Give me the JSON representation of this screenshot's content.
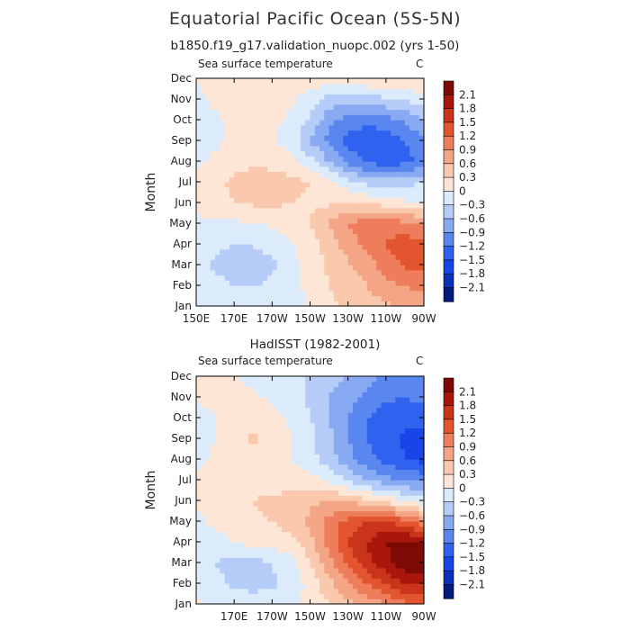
{
  "title": "Equatorial Pacific Ocean (5S-5N)",
  "subtitle": "b1850.f19_g17.validation_nuopc.002 (yrs 1-50)",
  "colors": {
    "levels": [
      -2.1,
      -1.8,
      -1.5,
      -1.2,
      -0.9,
      -0.6,
      -0.3,
      0,
      0.3,
      0.6,
      0.9,
      1.2,
      1.5,
      1.8,
      2.1
    ],
    "bins": [
      "#001b80",
      "#0a2fb8",
      "#1845e8",
      "#2f62ef",
      "#5a86f0",
      "#88aaf3",
      "#b6ccf8",
      "#dcebfb",
      "#fde6d6",
      "#f9c8ad",
      "#f4a586",
      "#ee7d5c",
      "#e2552f",
      "#c9341a",
      "#a9170c",
      "#7e0a05"
    ]
  },
  "chart_data": [
    {
      "type": "heatmap",
      "title": "",
      "left_label": "Sea surface temperature",
      "right_label": "C",
      "ylabel": "Month",
      "xlabel": "",
      "x_tick_labels": [
        "150E",
        "170E",
        "170W",
        "150W",
        "130W",
        "110W",
        "90W"
      ],
      "y_tick_labels": [
        "Jan",
        "Feb",
        "Mar",
        "Apr",
        "May",
        "Jun",
        "Jul",
        "Aug",
        "Sep",
        "Oct",
        "Nov",
        "Dec"
      ],
      "xlim": [
        "150E",
        "90W"
      ],
      "colorbar_labels": [
        "2.1",
        "1.8",
        "1.5",
        "1.2",
        "0.9",
        "0.6",
        "0.3",
        "0",
        "-0.3",
        "-0.6",
        "-0.9",
        "-1.2",
        "-1.5",
        "-1.8",
        "-2.1"
      ],
      "longitudes": [
        "150E",
        "160E",
        "170E",
        "180",
        "170W",
        "160W",
        "150W",
        "140W",
        "130W",
        "120W",
        "110W",
        "100W",
        "90W"
      ],
      "months": [
        "Jan",
        "Feb",
        "Mar",
        "Apr",
        "May",
        "Jun",
        "Jul",
        "Aug",
        "Sep",
        "Oct",
        "Nov",
        "Dec"
      ],
      "values": [
        [
          -0.05,
          -0.1,
          -0.12,
          -0.1,
          -0.06,
          -0.02,
          0.0,
          0.25,
          0.35,
          0.45,
          0.55,
          0.65,
          0.7
        ],
        [
          -0.1,
          -0.22,
          -0.3,
          -0.32,
          -0.25,
          -0.08,
          0.05,
          0.3,
          0.45,
          0.6,
          0.8,
          0.9,
          1.0
        ],
        [
          -0.15,
          -0.35,
          -0.42,
          -0.45,
          -0.35,
          -0.12,
          0.15,
          0.35,
          0.55,
          0.75,
          1.05,
          1.25,
          1.3
        ],
        [
          -0.1,
          -0.25,
          -0.3,
          -0.28,
          -0.2,
          -0.05,
          0.2,
          0.4,
          0.75,
          1.0,
          1.2,
          1.35,
          1.3
        ],
        [
          -0.05,
          -0.05,
          -0.05,
          -0.02,
          0.05,
          0.15,
          0.3,
          0.65,
          0.9,
          1.1,
          1.15,
          1.0,
          0.85
        ],
        [
          0.05,
          0.15,
          0.3,
          0.35,
          0.35,
          0.3,
          0.25,
          0.25,
          0.3,
          0.25,
          0.15,
          0.05,
          0.0
        ],
        [
          0.05,
          0.2,
          0.38,
          0.45,
          0.45,
          0.4,
          0.3,
          0.1,
          -0.2,
          -0.4,
          -0.45,
          -0.4,
          -0.3
        ],
        [
          -0.05,
          0.05,
          0.15,
          0.25,
          0.2,
          0.1,
          -0.2,
          -0.6,
          -1.0,
          -1.25,
          -1.4,
          -1.3,
          -1.1
        ],
        [
          -0.15,
          -0.05,
          0.05,
          0.1,
          0.05,
          -0.15,
          -0.6,
          -1.0,
          -1.3,
          -1.45,
          -1.4,
          -1.2,
          -0.95
        ],
        [
          -0.15,
          -0.05,
          0.05,
          0.1,
          0.05,
          -0.05,
          -0.35,
          -0.8,
          -1.0,
          -1.1,
          -1.0,
          -0.85,
          -0.6
        ],
        [
          -0.05,
          0.05,
          0.15,
          0.2,
          0.15,
          0.05,
          -0.15,
          -0.45,
          -0.5,
          -0.5,
          -0.35,
          -0.25,
          -0.15
        ],
        [
          0.0,
          0.1,
          0.15,
          0.2,
          0.15,
          0.1,
          0.15,
          0.2,
          0.25,
          0.3,
          0.35,
          0.35,
          0.3
        ]
      ]
    },
    {
      "type": "heatmap",
      "title": "HadISST (1982-2001)",
      "left_label": "Sea surface temperature",
      "right_label": "C",
      "ylabel": "Month",
      "xlabel": "",
      "x_tick_labels": [
        "170E",
        "170W",
        "150W",
        "130W",
        "110W",
        "90W"
      ],
      "y_tick_labels": [
        "Jan",
        "Feb",
        "Mar",
        "Apr",
        "May",
        "Jun",
        "Jul",
        "Aug",
        "Sep",
        "Oct",
        "Nov",
        "Dec"
      ],
      "xlim": [
        "150E",
        "90W"
      ],
      "colorbar_labels": [
        "2.1",
        "1.8",
        "1.5",
        "1.2",
        "0.9",
        "0.6",
        "0.3",
        "0",
        "-0.3",
        "-0.6",
        "-0.9",
        "-1.2",
        "-1.5",
        "-1.8",
        "-2.1"
      ],
      "longitudes": [
        "150E",
        "160E",
        "170E",
        "180",
        "170W",
        "160W",
        "150W",
        "140W",
        "130W",
        "120W",
        "110W",
        "100W",
        "90W"
      ],
      "months": [
        "Jan",
        "Feb",
        "Mar",
        "Apr",
        "May",
        "Jun",
        "Jul",
        "Aug",
        "Sep",
        "Oct",
        "Nov",
        "Dec"
      ],
      "values": [
        [
          0.05,
          -0.05,
          -0.15,
          -0.15,
          -0.1,
          -0.05,
          0.1,
          0.3,
          0.5,
          0.7,
          0.9,
          1.1,
          1.2
        ],
        [
          -0.05,
          -0.2,
          -0.35,
          -0.4,
          -0.35,
          -0.2,
          0.1,
          0.5,
          0.9,
          1.2,
          1.5,
          1.8,
          1.9
        ],
        [
          -0.1,
          -0.3,
          -0.4,
          -0.4,
          -0.3,
          -0.1,
          0.3,
          0.8,
          1.3,
          1.7,
          2.0,
          2.3,
          2.4
        ],
        [
          -0.05,
          -0.1,
          0.0,
          0.1,
          0.1,
          0.2,
          0.5,
          1.0,
          1.5,
          1.8,
          2.1,
          2.2,
          2.1
        ],
        [
          -0.05,
          0.05,
          0.15,
          0.25,
          0.3,
          0.45,
          0.65,
          1.0,
          1.3,
          1.5,
          1.5,
          1.3,
          1.0
        ],
        [
          0.05,
          0.1,
          0.2,
          0.3,
          0.35,
          0.4,
          0.55,
          0.6,
          0.55,
          0.4,
          0.2,
          0.0,
          -0.2
        ],
        [
          0.05,
          0.15,
          0.2,
          0.25,
          0.2,
          0.15,
          0.1,
          -0.05,
          -0.35,
          -0.6,
          -0.8,
          -0.9,
          -1.0
        ],
        [
          -0.1,
          0.05,
          0.15,
          0.2,
          0.1,
          0.0,
          -0.2,
          -0.45,
          -0.8,
          -1.1,
          -1.3,
          -1.5,
          -1.6
        ],
        [
          -0.15,
          0.0,
          0.2,
          0.35,
          0.2,
          0.0,
          -0.2,
          -0.5,
          -0.9,
          -1.2,
          -1.4,
          -1.55,
          -1.6
        ],
        [
          -0.1,
          0.0,
          0.1,
          0.15,
          0.1,
          -0.05,
          -0.3,
          -0.6,
          -0.9,
          -1.2,
          -1.35,
          -1.45,
          -1.4
        ],
        [
          0.05,
          0.05,
          0.1,
          0.05,
          -0.05,
          -0.15,
          -0.35,
          -0.6,
          -0.8,
          -1.0,
          -1.15,
          -1.2,
          -1.1
        ],
        [
          0.05,
          0.05,
          0.0,
          -0.1,
          -0.15,
          -0.2,
          -0.35,
          -0.5,
          -0.6,
          -0.8,
          -0.95,
          -1.0,
          -0.9
        ]
      ]
    }
  ]
}
